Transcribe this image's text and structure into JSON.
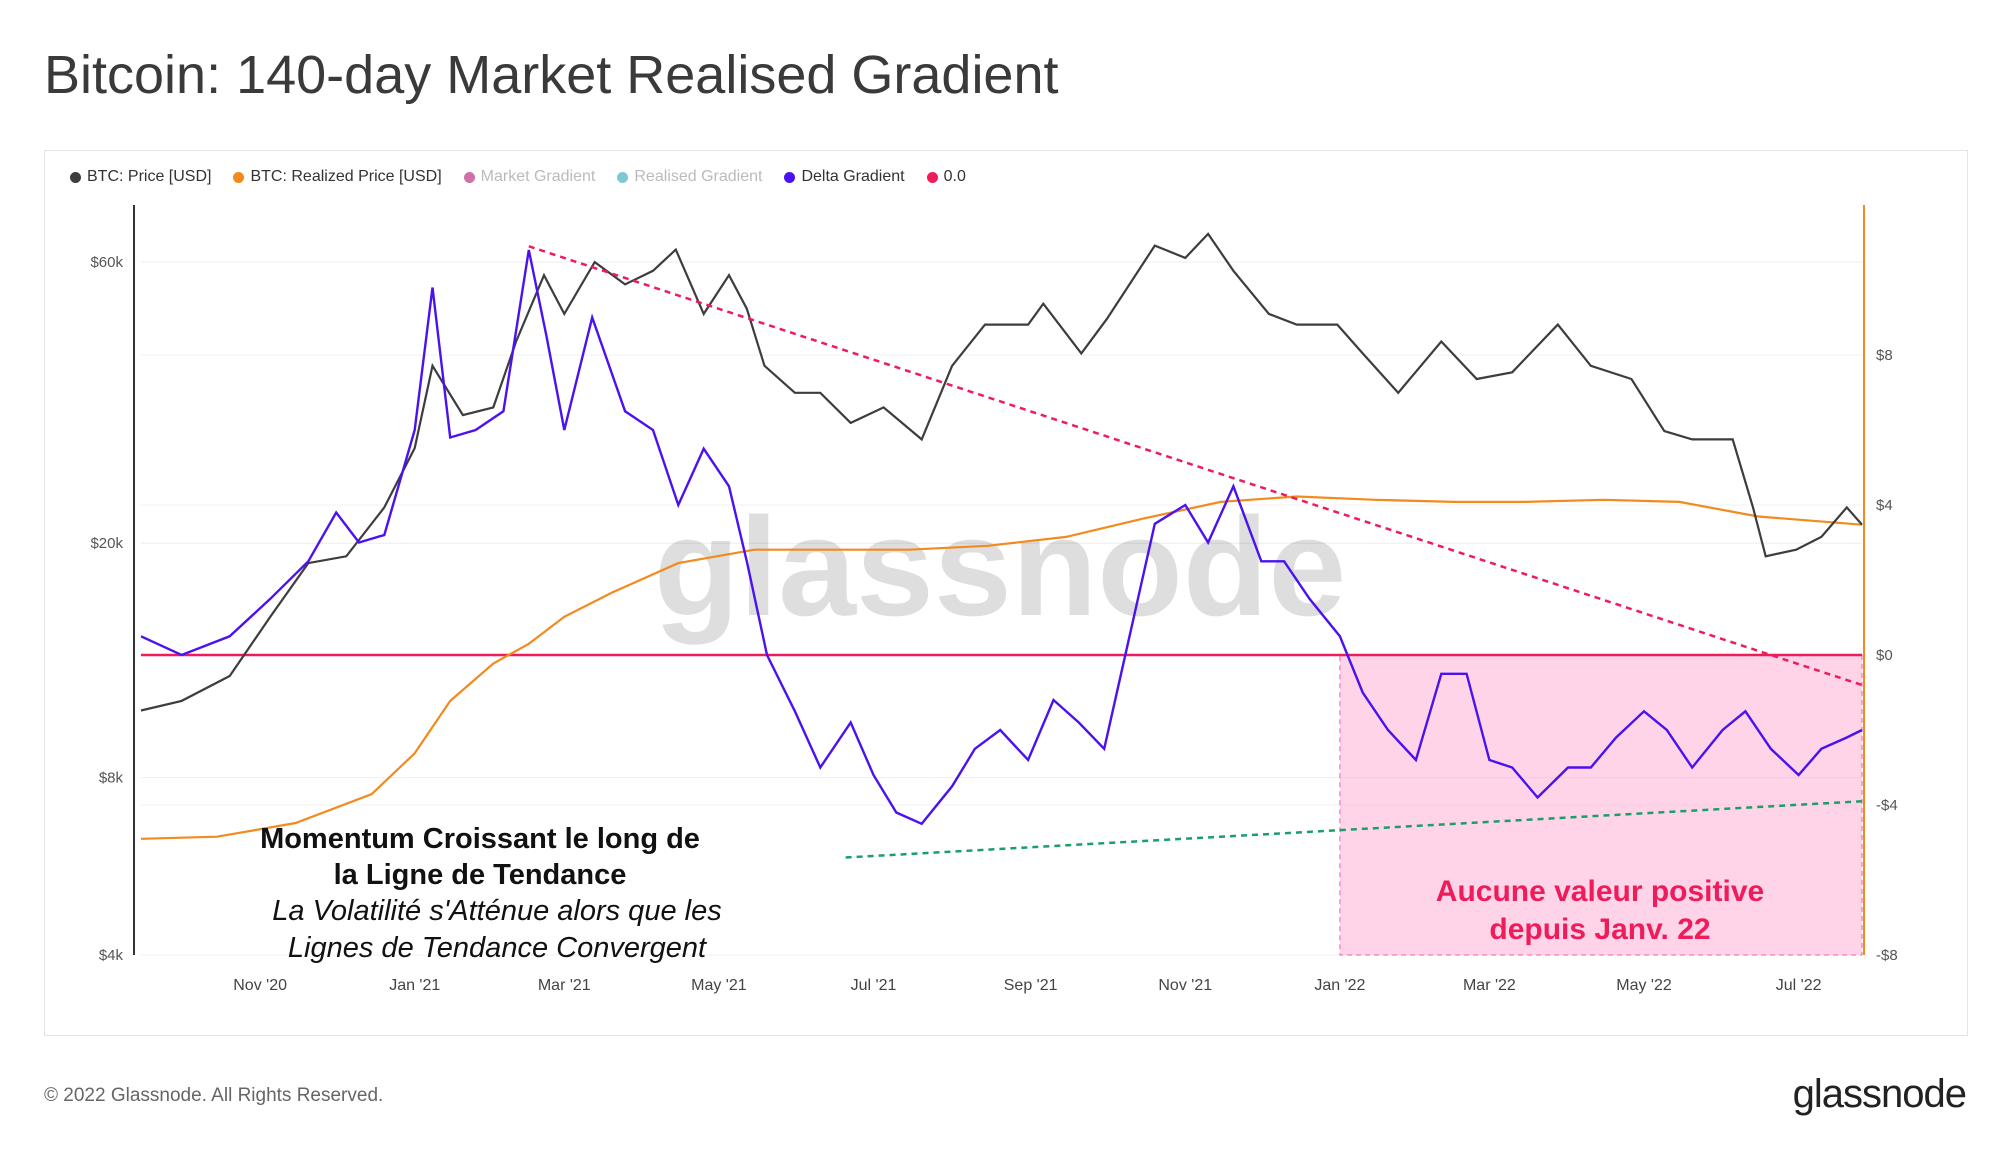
{
  "title": "Bitcoin: 140-day Market Realised Gradient",
  "footer": {
    "copyright": "© 2022 Glassnode. All Rights Reserved.",
    "logo": "glassnode"
  },
  "watermark": "glassnode",
  "legend": [
    {
      "label": "BTC: Price [USD]",
      "color": "#3d3d3d",
      "dim": false
    },
    {
      "label": "BTC: Realized Price [USD]",
      "color": "#f28a1e",
      "dim": false
    },
    {
      "label": "Market Gradient",
      "color": "#d070a8",
      "dim": true
    },
    {
      "label": "Realised Gradient",
      "color": "#7ec8d4",
      "dim": true
    },
    {
      "label": "Delta Gradient",
      "color": "#4a12f0",
      "dim": false
    },
    {
      "label": "0.0",
      "color": "#ee1c5a",
      "dim": false
    }
  ],
  "annotations": {
    "left_title_line1": "Momentum Croissant le long de",
    "left_title_line2": "la Ligne de Tendance",
    "left_italic_line1": "La Volatilité s'Atténue alors que les",
    "left_italic_line2": "Lignes de Tendance Convergent",
    "pink_box_line1": "Aucune valeur positive",
    "pink_box_line2": "depuis Janv. 22"
  },
  "chart_data": {
    "type": "line",
    "x_ticks": [
      "Nov '20",
      "Jan '21",
      "Mar '21",
      "May '21",
      "Jul '21",
      "Sep '21",
      "Nov '21",
      "Jan '22",
      "Mar '22",
      "May '22",
      "Jul '22"
    ],
    "y_left_ticks": [
      "$60k",
      "$20k",
      "$8k",
      "$4k"
    ],
    "y_right_ticks": [
      "$8",
      "$4",
      "$0",
      "-$4",
      "-$8"
    ],
    "y_left_scale": "log",
    "y_left_range": [
      4000,
      75000
    ],
    "y_right_range": [
      -8,
      12
    ],
    "series": [
      {
        "name": "BTC: Price [USD]",
        "color": "#3d3d3d",
        "x": [
          "2020-09-15",
          "2020-10-01",
          "2020-10-20",
          "2020-11-05",
          "2020-11-20",
          "2020-12-05",
          "2020-12-20",
          "2021-01-01",
          "2021-01-08",
          "2021-01-20",
          "2021-02-01",
          "2021-02-10",
          "2021-02-21",
          "2021-03-01",
          "2021-03-13",
          "2021-03-25",
          "2021-04-05",
          "2021-04-14",
          "2021-04-25",
          "2021-05-05",
          "2021-05-12",
          "2021-05-19",
          "2021-05-31",
          "2021-06-10",
          "2021-06-22",
          "2021-07-05",
          "2021-07-20",
          "2021-08-01",
          "2021-08-14",
          "2021-08-31",
          "2021-09-06",
          "2021-09-21",
          "2021-10-01",
          "2021-10-10",
          "2021-10-20",
          "2021-11-01",
          "2021-11-10",
          "2021-11-20",
          "2021-12-04",
          "2021-12-15",
          "2021-12-31",
          "2022-01-10",
          "2022-01-24",
          "2022-02-10",
          "2022-02-24",
          "2022-03-10",
          "2022-03-28",
          "2022-04-10",
          "2022-04-26",
          "2022-05-09",
          "2022-05-20",
          "2022-06-05",
          "2022-06-13",
          "2022-06-18",
          "2022-06-30",
          "2022-07-10",
          "2022-07-20",
          "2022-07-26"
        ],
        "values": [
          10400,
          10800,
          11900,
          15000,
          18500,
          19000,
          23000,
          29000,
          40000,
          33000,
          34000,
          44000,
          57000,
          49000,
          60000,
          55000,
          58000,
          63000,
          49000,
          57000,
          50000,
          40000,
          36000,
          36000,
          32000,
          34000,
          30000,
          40000,
          47000,
          47000,
          51000,
          42000,
          48000,
          55000,
          64000,
          61000,
          67000,
          58000,
          49000,
          47000,
          47000,
          42000,
          36000,
          44000,
          38000,
          39000,
          47000,
          40000,
          38000,
          31000,
          30000,
          30000,
          23000,
          19000,
          19500,
          20500,
          23000,
          21500
        ]
      },
      {
        "name": "BTC: Realized Price [USD]",
        "color": "#f28a1e",
        "x": [
          "2020-09-15",
          "2020-10-15",
          "2020-11-15",
          "2020-12-15",
          "2021-01-01",
          "2021-01-15",
          "2021-02-01",
          "2021-02-15",
          "2021-03-01",
          "2021-03-20",
          "2021-04-15",
          "2021-05-15",
          "2021-06-15",
          "2021-07-15",
          "2021-08-15",
          "2021-09-15",
          "2021-10-15",
          "2021-11-15",
          "2021-12-15",
          "2022-01-15",
          "2022-02-15",
          "2022-03-15",
          "2022-04-15",
          "2022-05-15",
          "2022-06-15",
          "2022-07-26"
        ],
        "values": [
          6300,
          6350,
          6700,
          7500,
          8800,
          10800,
          12500,
          13500,
          15000,
          16500,
          18500,
          19500,
          19500,
          19500,
          19800,
          20500,
          22000,
          23500,
          24000,
          23700,
          23500,
          23500,
          23700,
          23500,
          22200,
          21500
        ]
      },
      {
        "name": "Delta Gradient",
        "color": "#4a12f0",
        "x": [
          "2020-09-15",
          "2020-10-01",
          "2020-10-20",
          "2020-11-05",
          "2020-11-20",
          "2020-12-01",
          "2020-12-10",
          "2020-12-20",
          "2021-01-01",
          "2021-01-08",
          "2021-01-15",
          "2021-01-25",
          "2021-02-05",
          "2021-02-15",
          "2021-02-22",
          "2021-03-01",
          "2021-03-12",
          "2021-03-25",
          "2021-04-05",
          "2021-04-15",
          "2021-04-25",
          "2021-05-05",
          "2021-05-12",
          "2021-05-20",
          "2021-05-31",
          "2021-06-10",
          "2021-06-22",
          "2021-07-01",
          "2021-07-10",
          "2021-07-20",
          "2021-08-01",
          "2021-08-10",
          "2021-08-20",
          "2021-08-31",
          "2021-09-10",
          "2021-09-20",
          "2021-09-30",
          "2021-10-10",
          "2021-10-20",
          "2021-11-01",
          "2021-11-10",
          "2021-11-20",
          "2021-12-01",
          "2021-12-10",
          "2021-12-20",
          "2022-01-01",
          "2022-01-10",
          "2022-01-20",
          "2022-01-31",
          "2022-02-10",
          "2022-02-20",
          "2022-03-01",
          "2022-03-10",
          "2022-03-20",
          "2022-04-01",
          "2022-04-10",
          "2022-04-20",
          "2022-05-01",
          "2022-05-10",
          "2022-05-20",
          "2022-06-01",
          "2022-06-10",
          "2022-06-20",
          "2022-07-01",
          "2022-07-10",
          "2022-07-20",
          "2022-07-26"
        ],
        "values": [
          0.5,
          0.0,
          0.5,
          1.5,
          2.5,
          3.8,
          3.0,
          3.2,
          6.0,
          9.8,
          5.8,
          6.0,
          6.5,
          10.8,
          8.5,
          6.0,
          9.0,
          6.5,
          6.0,
          4.0,
          5.5,
          4.5,
          2.5,
          0.0,
          -1.5,
          -3.0,
          -1.8,
          -3.2,
          -4.2,
          -4.5,
          -3.5,
          -2.5,
          -2.0,
          -2.8,
          -1.2,
          -1.8,
          -2.5,
          0.5,
          3.5,
          4.0,
          3.0,
          4.5,
          2.5,
          2.5,
          1.5,
          0.5,
          -1.0,
          -2.0,
          -2.8,
          -0.5,
          -0.5,
          -2.8,
          -3.0,
          -3.8,
          -3.0,
          -3.0,
          -2.2,
          -1.5,
          -2.0,
          -3.0,
          -2.0,
          -1.5,
          -2.5,
          -3.2,
          -2.5,
          -2.2,
          -2.0
        ]
      }
    ],
    "zero_line": 0.0,
    "trendline_delta_upper": {
      "color": "#ee1c5a",
      "from": {
        "x": "2021-02-15",
        "y": 10.9
      },
      "to": {
        "x": "2022-07-26",
        "y": -0.8
      }
    },
    "trendline_delta_lower": {
      "color": "#1a9e6a",
      "from": {
        "x": "2021-06-20",
        "y": -5.4
      },
      "to": {
        "x": "2022-07-26",
        "y": -3.9
      }
    },
    "highlight_region": {
      "color": "#ff9fcb",
      "x_from": "2022-01-01",
      "x_to": "2022-07-26",
      "y_from": -8,
      "y_to": 0
    },
    "grid": true
  }
}
